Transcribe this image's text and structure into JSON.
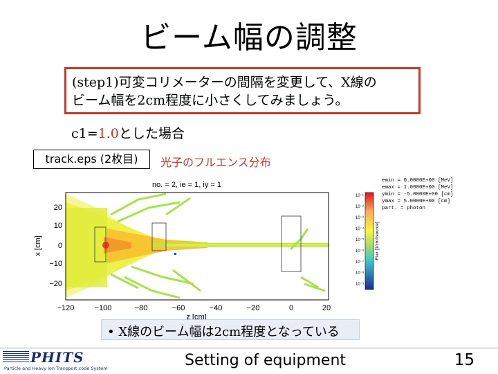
{
  "title": "ビーム幅の調整",
  "step_box": {
    "line1": "(step1)可変コリメーターの間隔を変更して、X線の",
    "line2": "ビーム幅を2cm程度に小さくしてみましょう。"
  },
  "case": {
    "prefix": "c1=",
    "value": "1.0",
    "suffix": "とした場合"
  },
  "track_label": "track.eps (2枚目)",
  "fluence_label": "光子のフルエンス分布",
  "plot": {
    "header": "no. = 2,  ie = 1,  iy = 1",
    "params": [
      "emin = 0.0000E+00 [MeV]",
      "emax = 1.0000E+00 [MeV]",
      "ymin = -5.0000E+00 [cm]",
      "ymax = 5.0000E+00 [cm]",
      "part. = photon"
    ],
    "colorbar_label": "Flux [1/cm²/source]",
    "colorbar_ticks": [
      "10⁻¹",
      "10⁻²",
      "10⁻³",
      "10⁻⁴",
      "10⁻⁵",
      "10⁻⁶",
      "10⁻⁷",
      "10⁻⁸",
      "10⁻⁹"
    ],
    "xlabel": "z [cm]",
    "ylabel": "x [cm]",
    "xticks": [
      "−120",
      "−100",
      "−80",
      "−60",
      "−40",
      "−20",
      "0",
      "20"
    ],
    "yticks": [
      "20",
      "10",
      "0",
      "−10",
      "−20"
    ]
  },
  "bullet": {
    "marker": "•",
    "text": "X線のビーム幅は2cm程度となっている"
  },
  "footer": {
    "logo_name": "PHITS",
    "logo_sub": "Particle and Heavy Ion Transport code System",
    "text": "Setting of equipment",
    "page": "15"
  }
}
